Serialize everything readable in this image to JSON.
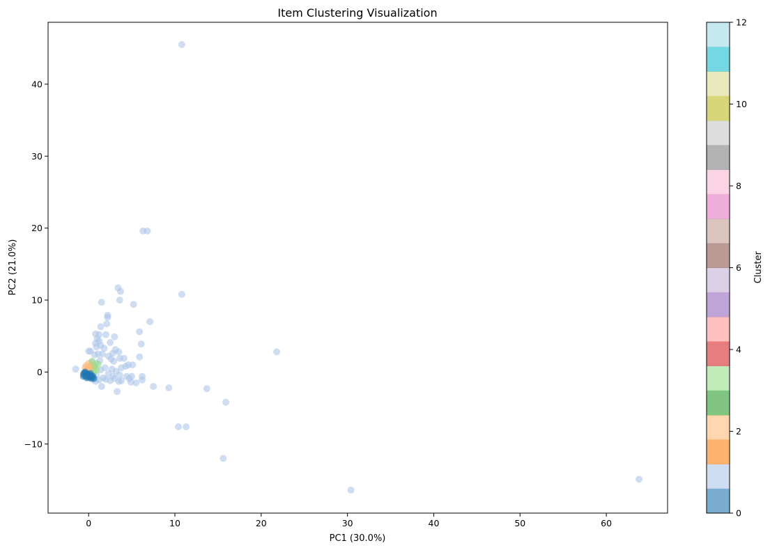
{
  "chart_data": {
    "type": "scatter",
    "title": "Item Clustering Visualization",
    "xlabel": "PC1 (30.0%)",
    "ylabel": "PC2 (21.0%)",
    "xlim": [
      -4.7,
      67.1
    ],
    "ylim": [
      -19.6,
      48.6
    ],
    "x_ticks": [
      0,
      10,
      20,
      30,
      40,
      50,
      60
    ],
    "y_ticks": [
      -10,
      0,
      10,
      20,
      30,
      40
    ],
    "grid": false,
    "legend": "none",
    "colorbar": {
      "label": "Cluster",
      "range": [
        0,
        12
      ],
      "ticks": [
        0,
        2,
        4,
        6,
        8,
        10,
        12
      ],
      "colormap": "tab20",
      "colors": [
        "#1f77b4",
        "#aec7e8",
        "#ff7f0e",
        "#ffbb78",
        "#2ca02c",
        "#98df8a",
        "#d62728",
        "#ff9896",
        "#9467bd",
        "#c5b0d5",
        "#8c564b",
        "#c49c94",
        "#e377c2",
        "#f7b6d2",
        "#7f7f7f",
        "#c7c7c7",
        "#bcbd22",
        "#dbdb8d",
        "#17becf",
        "#9edae5"
      ]
    },
    "point_alpha": 0.6,
    "series": [
      {
        "cluster": 1,
        "color": "#aec7e8",
        "points": [
          [
            10.8,
            45.5
          ],
          [
            6.3,
            19.6
          ],
          [
            6.8,
            19.6
          ],
          [
            3.4,
            11.7
          ],
          [
            3.7,
            11.2
          ],
          [
            10.8,
            10.8
          ],
          [
            3.6,
            10.0
          ],
          [
            1.5,
            9.7
          ],
          [
            5.2,
            9.4
          ],
          [
            2.2,
            7.9
          ],
          [
            2.2,
            7.6
          ],
          [
            7.1,
            7.0
          ],
          [
            2.1,
            6.7
          ],
          [
            1.4,
            6.3
          ],
          [
            5.9,
            5.6
          ],
          [
            0.8,
            5.3
          ],
          [
            1.2,
            5.2
          ],
          [
            2.0,
            5.2
          ],
          [
            3.0,
            4.9
          ],
          [
            1.0,
            4.6
          ],
          [
            1.2,
            4.3
          ],
          [
            0.8,
            4.0
          ],
          [
            2.5,
            4.1
          ],
          [
            6.1,
            3.9
          ],
          [
            1.4,
            3.7
          ],
          [
            0.9,
            3.5
          ],
          [
            1.8,
            3.3
          ],
          [
            3.1,
            3.1
          ],
          [
            21.8,
            2.8
          ],
          [
            3.5,
            2.8
          ],
          [
            2.8,
            2.6
          ],
          [
            1.1,
            2.5
          ],
          [
            1.6,
            2.5
          ],
          [
            2.3,
            2.2
          ],
          [
            0.7,
            2.4
          ],
          [
            0.2,
            2.9
          ],
          [
            0.0,
            2.9
          ],
          [
            5.9,
            2.1
          ],
          [
            3.6,
            1.9
          ],
          [
            4.1,
            1.9
          ],
          [
            2.6,
            1.8
          ],
          [
            1.3,
            1.6
          ],
          [
            0.4,
            1.4
          ],
          [
            2.9,
            1.5
          ],
          [
            0.9,
            1.2
          ],
          [
            4.6,
            1.0
          ],
          [
            5.1,
            1.0
          ],
          [
            4.3,
            0.8
          ],
          [
            3.8,
            0.6
          ],
          [
            0.6,
            0.9
          ],
          [
            1.9,
            0.6
          ],
          [
            2.7,
            0.4
          ],
          [
            1.4,
            0.3
          ],
          [
            3.2,
            0.1
          ],
          [
            2.3,
            -0.2
          ],
          [
            0.9,
            -0.4
          ],
          [
            3.6,
            -0.4
          ],
          [
            4.4,
            -0.6
          ],
          [
            2.8,
            -0.6
          ],
          [
            6.2,
            -0.6
          ],
          [
            5.0,
            -0.6
          ],
          [
            1.7,
            -0.8
          ],
          [
            3.0,
            -0.9
          ],
          [
            4.7,
            -0.9
          ],
          [
            2.0,
            -1.0
          ],
          [
            0.4,
            -1.0
          ],
          [
            1.2,
            -1.1
          ],
          [
            3.8,
            -1.2
          ],
          [
            6.2,
            -1.1
          ],
          [
            2.5,
            -1.2
          ],
          [
            0.8,
            -1.3
          ],
          [
            3.5,
            -1.3
          ],
          [
            4.9,
            -1.4
          ],
          [
            5.5,
            -1.5
          ],
          [
            -1.5,
            0.4
          ],
          [
            1.5,
            -2.0
          ],
          [
            7.5,
            -2.0
          ],
          [
            9.3,
            -2.2
          ],
          [
            3.3,
            -2.7
          ],
          [
            13.7,
            -2.3
          ],
          [
            15.9,
            -4.2
          ],
          [
            10.4,
            -7.6
          ],
          [
            11.3,
            -7.6
          ],
          [
            15.6,
            -12.0
          ],
          [
            63.8,
            -14.9
          ],
          [
            30.4,
            -16.4
          ]
        ]
      },
      {
        "cluster": 1.5,
        "color": "#ffbb78",
        "points": [
          [
            -0.3,
            0.9
          ],
          [
            0.0,
            1.2
          ],
          [
            0.2,
            0.8
          ],
          [
            0.4,
            1.0
          ],
          [
            0.1,
            0.4
          ],
          [
            -0.2,
            0.3
          ],
          [
            0.3,
            0.2
          ],
          [
            0.5,
            0.6
          ],
          [
            0.6,
            0.3
          ],
          [
            0.0,
            0.1
          ],
          [
            -0.4,
            0.6
          ],
          [
            0.2,
            -0.1
          ]
        ]
      },
      {
        "cluster": 2.5,
        "color": "#98df8a",
        "points": [
          [
            0.4,
            1.5
          ],
          [
            0.7,
            0.8
          ],
          [
            0.9,
            0.3
          ],
          [
            0.6,
            0.0
          ],
          [
            1.1,
            1.1
          ]
        ]
      },
      {
        "cluster": 0,
        "color": "#1f77b4",
        "points": [
          [
            -0.6,
            -0.3
          ],
          [
            -0.4,
            -0.5
          ],
          [
            -0.2,
            -0.6
          ],
          [
            0.0,
            -0.7
          ],
          [
            0.2,
            -0.8
          ],
          [
            0.4,
            -0.8
          ],
          [
            -0.5,
            -0.1
          ],
          [
            -0.3,
            -0.2
          ],
          [
            -0.1,
            -0.3
          ],
          [
            0.1,
            -0.4
          ],
          [
            0.3,
            -0.5
          ],
          [
            0.5,
            -0.6
          ],
          [
            -0.4,
            0.0
          ],
          [
            -0.2,
            -0.8
          ],
          [
            0.0,
            -0.5
          ],
          [
            0.6,
            -0.9
          ],
          [
            -0.6,
            -0.6
          ],
          [
            0.2,
            -0.2
          ]
        ]
      }
    ]
  }
}
